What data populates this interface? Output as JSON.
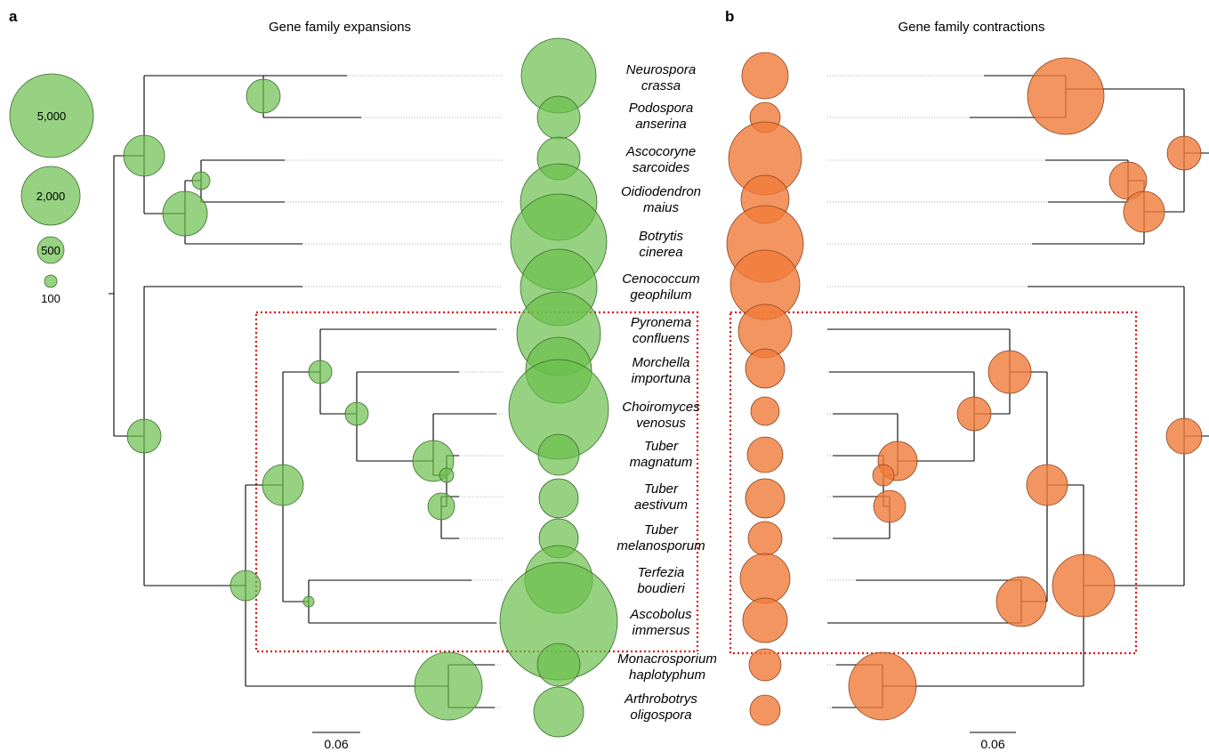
{
  "panels": {
    "a": {
      "letter": "a",
      "title": "Gene family expansions"
    },
    "b": {
      "letter": "b",
      "title": "Gene family contractions"
    }
  },
  "legend": {
    "items": [
      {
        "label": "5,000"
      },
      {
        "label": "2,000"
      },
      {
        "label": "500"
      },
      {
        "label": "100"
      }
    ]
  },
  "species": [
    {
      "genus": "Neurospora",
      "epithet": "crassa"
    },
    {
      "genus": "Podospora",
      "epithet": "anserina"
    },
    {
      "genus": "Ascocoryne",
      "epithet": "sarcoides"
    },
    {
      "genus": "Oidiodendron",
      "epithet": "maius"
    },
    {
      "genus": "Botrytis",
      "epithet": "cinerea"
    },
    {
      "genus": "Cenococcum",
      "epithet": "geophilum"
    },
    {
      "genus": "Pyronema",
      "epithet": "confluens"
    },
    {
      "genus": "Morchella",
      "epithet": "importuna"
    },
    {
      "genus": "Choiromyces",
      "epithet": "venosus"
    },
    {
      "genus": "Tuber",
      "epithet": "magnatum"
    },
    {
      "genus": "Tuber",
      "epithet": "aestivum"
    },
    {
      "genus": "Tuber",
      "epithet": "melanosporum"
    },
    {
      "genus": "Terfezia",
      "epithet": "boudieri"
    },
    {
      "genus": "Ascobolus",
      "epithet": "immersus"
    },
    {
      "genus": "Monacrosporium",
      "epithet": "haplotyphum"
    },
    {
      "genus": "Arthrobotrys",
      "epithet": "oligospora"
    }
  ],
  "scale_bars": {
    "left": "0.06",
    "right": "0.06"
  },
  "colors": {
    "expansion": "#6abf4b",
    "contraction": "#f07a3a",
    "highlight_box": "#e01010"
  }
}
